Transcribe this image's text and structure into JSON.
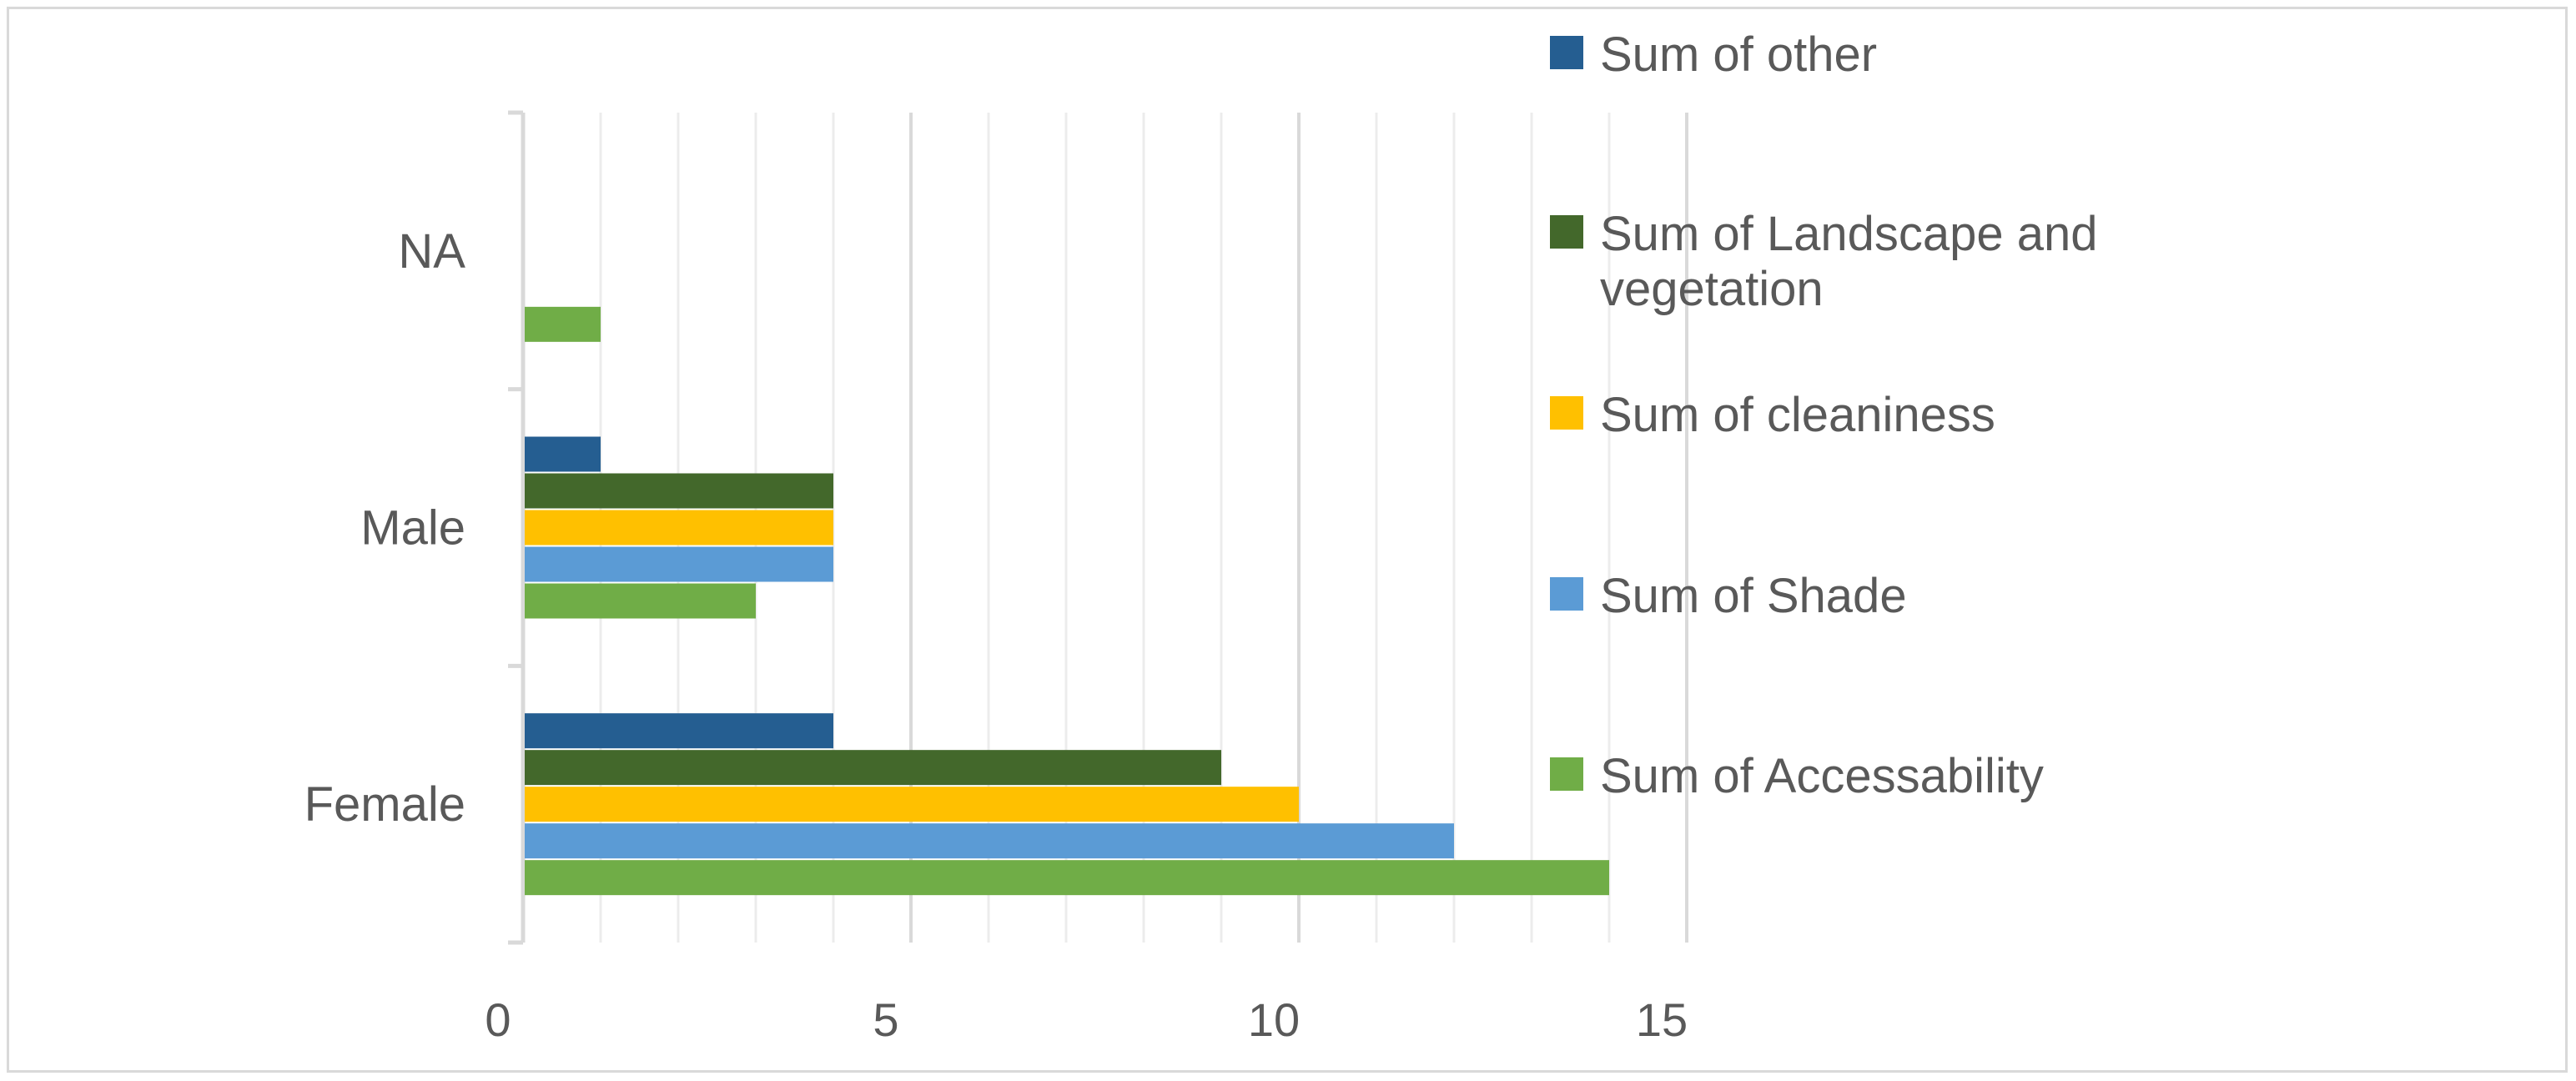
{
  "chart_data": {
    "type": "bar",
    "orientation": "horizontal",
    "title": "",
    "xlabel": "",
    "ylabel": "",
    "categories": [
      "Female",
      "Male",
      "NA"
    ],
    "xlim": [
      0,
      15
    ],
    "major_ticks": [
      0,
      5,
      10,
      15
    ],
    "minor_step": 1,
    "grid": true,
    "legend_position": "right",
    "series": [
      {
        "name": "Sum of Accessability",
        "color": "#70ad47",
        "values": [
          14,
          3,
          1
        ]
      },
      {
        "name": "Sum of Shade",
        "color": "#5b9bd5",
        "values": [
          12,
          4,
          0
        ]
      },
      {
        "name": "Sum of cleaniness",
        "color": "#ffc000",
        "values": [
          10,
          4,
          0
        ]
      },
      {
        "name": "Sum of Landscape and vegetation",
        "color": "#43682b",
        "values": [
          9,
          4,
          0
        ]
      },
      {
        "name": "Sum of other",
        "color": "#255e91",
        "values": [
          4,
          1,
          0
        ]
      }
    ],
    "legend": [
      {
        "label_lines": [
          "Sum of other"
        ],
        "color": "#255e91"
      },
      {
        "label_lines": [
          "Sum of Landscape and",
          "vegetation"
        ],
        "color": "#43682b"
      },
      {
        "label_lines": [
          "Sum of cleaniness"
        ],
        "color": "#ffc000"
      },
      {
        "label_lines": [
          "Sum of Shade"
        ],
        "color": "#5b9bd5"
      },
      {
        "label_lines": [
          "Sum of Accessability"
        ],
        "color": "#70ad47"
      }
    ]
  }
}
